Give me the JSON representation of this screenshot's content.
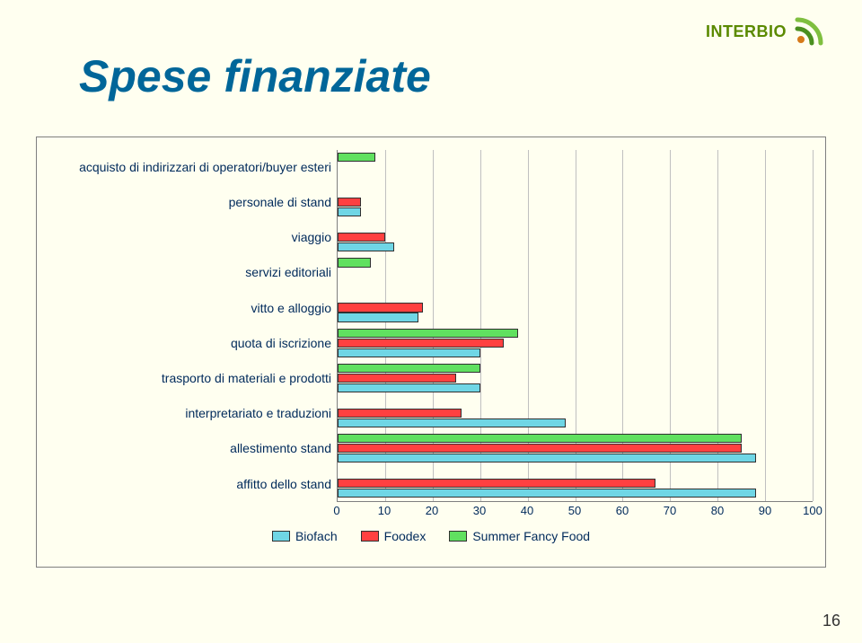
{
  "brand": {
    "text": "INTERBIO",
    "icon_colors": {
      "outer": "#7fbf3f",
      "inner": "#4a8f1f",
      "dot": "#d67a1a"
    }
  },
  "title": "Spese finanziate",
  "page_number": "16",
  "chart": {
    "type": "bar",
    "orientation": "horizontal",
    "background_color": "#fffff0",
    "grid_color": "#c0c0c0",
    "axis_color": "#808080",
    "label_color": "#002a5b",
    "label_fontsize": 14,
    "xlim": [
      0,
      100
    ],
    "xtick_step": 10,
    "xticks": [
      "0",
      "10",
      "20",
      "30",
      "40",
      "50",
      "60",
      "70",
      "80",
      "90",
      "100"
    ],
    "categories": [
      "acquisto di indirizzari di operatori/buyer esteri",
      "personale di stand",
      "viaggio",
      "servizi editoriali",
      "vitto e alloggio",
      "quota di iscrizione",
      "trasporto di materiali e prodotti",
      "interpretariato e traduzioni",
      "allestimento stand",
      "affitto dello stand"
    ],
    "series": [
      {
        "name": "Biofach",
        "color": "#6fd6e5",
        "values": [
          0,
          5,
          12,
          0,
          17,
          30,
          30,
          48,
          88,
          88
        ]
      },
      {
        "name": "Foodex",
        "color": "#ff4040",
        "values": [
          0,
          5,
          10,
          0,
          18,
          35,
          25,
          26,
          85,
          67
        ]
      },
      {
        "name": "Summer Fancy Food",
        "color": "#60e060",
        "values": [
          8,
          0,
          0,
          7,
          0,
          38,
          30,
          0,
          85,
          0
        ]
      }
    ],
    "bar_group_gap_pct": 8,
    "legend_position": "bottom"
  }
}
